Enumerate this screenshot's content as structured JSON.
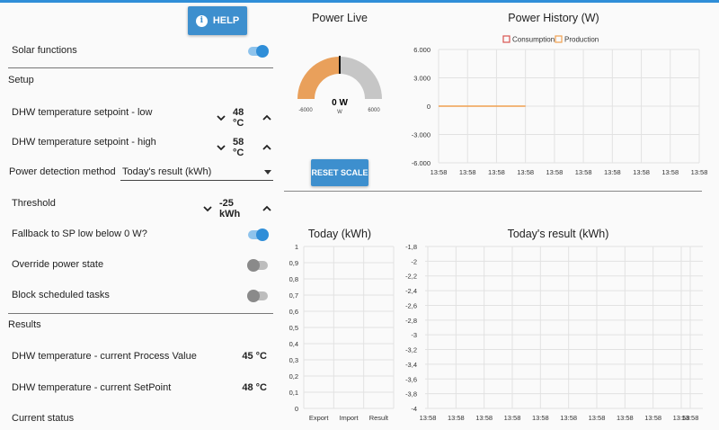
{
  "help": {
    "label": "HELP"
  },
  "solar_functions": {
    "label": "Solar functions",
    "on": true
  },
  "setup": {
    "heading": "Setup",
    "dhw_low": {
      "label": "DHW temperature setpoint - low",
      "value": "48 °C"
    },
    "dhw_high": {
      "label": "DHW temperature setpoint - high",
      "value": "58 °C"
    },
    "power_detection": {
      "label": "Power detection method",
      "value": "Today's result (kWh)"
    },
    "threshold": {
      "label": "Threshold",
      "value": "-25 kWh"
    },
    "fallback": {
      "label": "Fallback to SP low below 0 W?",
      "on": true
    },
    "override": {
      "label": "Override power state",
      "on": false
    },
    "block": {
      "label": "Block scheduled tasks",
      "on": false
    }
  },
  "results": {
    "heading": "Results",
    "dhw_pv": {
      "label": "DHW temperature - current Process Value",
      "value": "45 °C"
    },
    "dhw_sp": {
      "label": "DHW temperature - current SetPoint",
      "value": "48 °C"
    },
    "status": {
      "label": "Current status"
    }
  },
  "power_live": {
    "title": "Power Live",
    "value_label": "0 W",
    "unit": "W",
    "min_label": "-6000",
    "max_label": "6000",
    "value": 0,
    "min": -6000,
    "max": 6000,
    "colors": {
      "negative": "#e9a05b",
      "positive": "#c6c6c6"
    },
    "reset_label": "RESET SCALE"
  },
  "chart_data": [
    {
      "type": "line",
      "title": "Power History (W)",
      "legend": [
        "Consumption",
        "Production"
      ],
      "legend_colors": [
        "#d9534f",
        "#f0a050"
      ],
      "yticks": [
        "6.000",
        "3.000",
        "0",
        "-3.000",
        "-6.000"
      ],
      "ylim": [
        -6000,
        6000
      ],
      "xticks": [
        "13:58",
        "13:58",
        "13:58",
        "13:58",
        "13:58",
        "13:58",
        "13:58",
        "13:58",
        "13:58",
        "13:58"
      ],
      "series": [
        {
          "name": "Production",
          "x": [
            0,
            3
          ],
          "values": [
            0,
            0
          ]
        }
      ]
    },
    {
      "type": "bar",
      "title": "Today (kWh)",
      "categories": [
        "Export",
        "Import",
        "Result"
      ],
      "values": [
        0,
        0,
        0
      ],
      "yticks": [
        "1",
        "0,9",
        "0,8",
        "0,7",
        "0,6",
        "0,5",
        "0,4",
        "0,3",
        "0,2",
        "0,1",
        "0"
      ],
      "ylim": [
        0,
        1
      ]
    },
    {
      "type": "line",
      "title": "Today's result (kWh)",
      "yticks": [
        "-1,8",
        "-2",
        "-2,2",
        "-2,4",
        "-2,6",
        "-2,8",
        "-3",
        "-3,2",
        "-3,4",
        "-3,6",
        "-3,8",
        "-4"
      ],
      "ylim": [
        -4,
        -1.8
      ],
      "xticks": [
        "13:58",
        "13:58",
        "13:58",
        "13:58",
        "13:58",
        "13:58",
        "13:58",
        "13:58",
        "13:58",
        "13:58",
        "13:58"
      ],
      "series": []
    }
  ]
}
